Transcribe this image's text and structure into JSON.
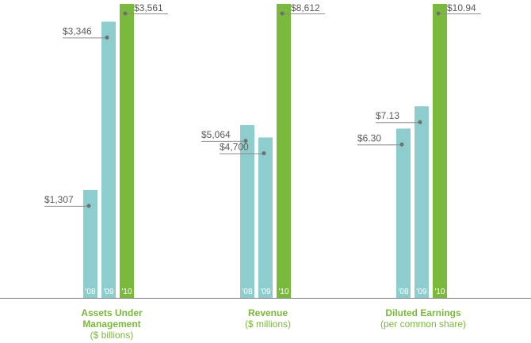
{
  "colors": {
    "past": "#8ecdcd",
    "current": "#79b93c",
    "text": "#595959",
    "title": "#7ab83a"
  },
  "chart_data": [
    {
      "type": "bar",
      "title": "Assets Under Management",
      "title_lines": [
        "Assets Under",
        "Management"
      ],
      "subtitle": "($ billions)",
      "categories": [
        "'08",
        "'09",
        "'10"
      ],
      "values": [
        1307,
        3346,
        3561
      ],
      "labels": [
        "$1,307",
        "$3,346",
        "$3,561"
      ],
      "ylim": [
        0,
        3561
      ]
    },
    {
      "type": "bar",
      "title": "Revenue",
      "title_lines": [
        "Revenue"
      ],
      "subtitle": "($ millions)",
      "categories": [
        "'08",
        "'09",
        "'10"
      ],
      "values": [
        5064,
        4700,
        8612
      ],
      "labels": [
        "$5,064",
        "$4,700",
        "$8,612"
      ],
      "ylim": [
        0,
        8612
      ]
    },
    {
      "type": "bar",
      "title": "Diluted Earnings",
      "title_lines": [
        "Diluted Earnings"
      ],
      "subtitle": "(per common share)",
      "categories": [
        "'08",
        "'09",
        "'10"
      ],
      "values": [
        6.3,
        7.13,
        10.94
      ],
      "labels": [
        "$6.30",
        "$7.13",
        "$10.94"
      ],
      "ylim": [
        0,
        10.94
      ]
    }
  ]
}
